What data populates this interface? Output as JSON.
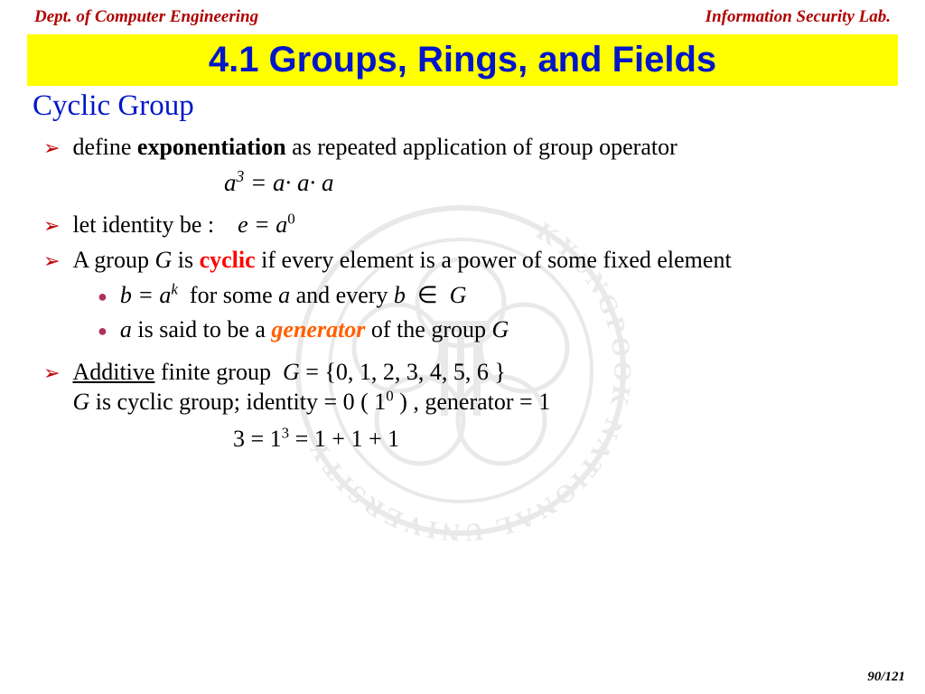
{
  "header": {
    "left": "Dept. of Computer Engineering",
    "right": "Information Security Lab.",
    "color": "#b00000"
  },
  "title": {
    "text": "4.1 Groups, Rings, and Fields",
    "bg": "#ffff00",
    "color": "#0016c8"
  },
  "subtitle": {
    "text": "Cyclic Group",
    "color": "#0016c8"
  },
  "bullets": {
    "b1_pre": "define ",
    "b1_bold": "exponentiation",
    "b1_post": " as repeated application of group operator",
    "eq1_html": "<span class='ital'>a</span><sup>3</sup> = <span class='ital'>a</span>· <span class='ital'>a</span>· <span class='ital'>a</span>",
    "b2_pre": "let identity be :    ",
    "b2_eq": "<span class='ital'>e = a</span><sup>0</sup>",
    "b3_pre": "A group ",
    "b3_G": "G",
    "b3_mid": " is ",
    "b3_cyclic": "cyclic",
    "b3_post": " if every element is a power of some fixed element",
    "s1_html": "<span class='ital'>b = a<sup>k</sup></span>&nbsp;&nbsp;for some <span class='ital'>a</span> and every <span class='ital'>b</span> &nbsp;∈&nbsp; <span class='ital'>G</span>",
    "s2_pre": "a",
    "s2_mid": " is said to be a ",
    "s2_gen": "generator",
    "s2_post": " of the group ",
    "s2_G": "G",
    "b4_add": "Additive",
    "b4_mid": " finite group  ",
    "b4_eq": "<span class='ital'>G</span> = {0, 1, 2, 3, 4, 5, 6 }",
    "b4_line2": "<span class='ital'>G</span> is cyclic group; identity = 0 ( 1<sup>0</sup> ) , generator = 1",
    "eq_last": "3 = 1<sup>3</sup> = 1 + 1 + 1"
  },
  "page": "90/121",
  "colors": {
    "arrow": "#c00000",
    "dot": "#b03060",
    "red": "#ff0000",
    "orange": "#ff6000"
  }
}
